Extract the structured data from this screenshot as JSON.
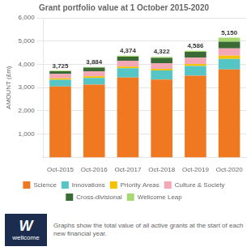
{
  "chart_data": {
    "type": "bar",
    "title": "Grant portfolio value at 1 October 2015-2020",
    "ylabel": "AMOUNT (£m)",
    "categories": [
      "Oct-2015",
      "Oct-2016",
      "Oct-2017",
      "Oct-2018",
      "Oct-2019",
      "Oct-2020"
    ],
    "series": [
      {
        "name": "Science",
        "color": "#F07820",
        "values": [
          3050,
          3130,
          3430,
          3350,
          3510,
          3780
        ]
      },
      {
        "name": "Innovations",
        "color": "#56C5C5",
        "values": [
          290,
          290,
          400,
          390,
          420,
          450
        ]
      },
      {
        "name": "Priority Areas",
        "color": "#F5C200",
        "values": [
          55,
          65,
          75,
          65,
          90,
          145
        ]
      },
      {
        "name": "Culture & Society",
        "color": "#F4A7B5",
        "values": [
          195,
          220,
          250,
          250,
          270,
          310
        ]
      },
      {
        "name": "Cross-divisional",
        "color": "#3B6B35",
        "values": [
          110,
          155,
          175,
          220,
          250,
          290
        ]
      },
      {
        "name": "Wellcome Leap",
        "color": "#A8D870",
        "values": [
          25,
          24,
          44,
          47,
          46,
          175
        ]
      }
    ],
    "totals": [
      3725,
      3884,
      4374,
      4322,
      4586,
      5150
    ],
    "total_labels": [
      "3,725",
      "3,884",
      "4,374",
      "4,322",
      "4,586",
      "5,150"
    ],
    "stacked": true,
    "ylim": [
      0,
      6000
    ],
    "yticks": [
      {
        "value": 1000,
        "label": "1,000"
      },
      {
        "value": 2000,
        "label": "2,000"
      },
      {
        "value": 3000,
        "label": "3,000"
      },
      {
        "value": 4000,
        "label": "4,000"
      },
      {
        "value": 5000,
        "label": "5,000"
      },
      {
        "value": 6000,
        "label": "6,000"
      }
    ],
    "grid": true,
    "legend": "bottom",
    "annotations": [
      "W",
      "wellcome",
      "Graphs show the total value of all active grants at the start of each new financial year."
    ]
  }
}
